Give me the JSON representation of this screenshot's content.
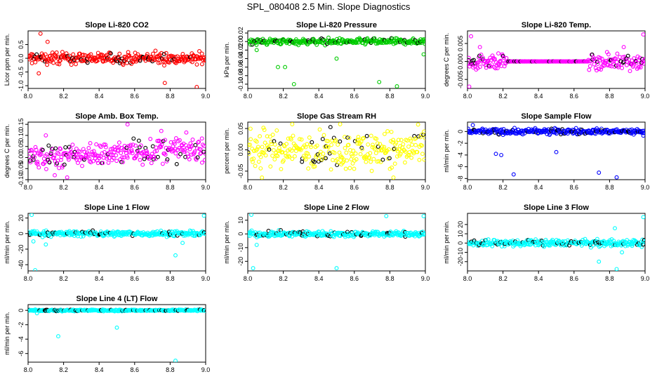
{
  "page_title": "SPL_080408  2.5 Min. Slope Diagnostics",
  "colors": {
    "highlight": "#000000"
  },
  "chart_data": [
    {
      "type": "scatter",
      "title": "Slope Li-820 CO2",
      "ylabel": "Licor ppm per min.",
      "color": "#ff0000",
      "xlim": [
        8.0,
        9.0
      ],
      "xticks": [
        8.0,
        8.2,
        8.4,
        8.6,
        8.8,
        9.0
      ],
      "xtick_labels": [
        "8.0",
        "8.2",
        "8.4",
        "8.6",
        "8.8",
        "9.0"
      ],
      "ylim": [
        -1.1,
        1.0
      ],
      "yticks": [
        -1.0,
        -0.5,
        0.0,
        0.5
      ],
      "ytick_labels": [
        "-1.0",
        "-0.5",
        "0.0",
        "0.5"
      ],
      "base": 0.0,
      "spread": 0.15,
      "outliers": [
        [
          8.07,
          0.9
        ],
        [
          8.11,
          0.6
        ],
        [
          8.77,
          -0.9
        ],
        [
          8.95,
          -1.05
        ],
        [
          8.06,
          -0.55
        ]
      ]
    },
    {
      "type": "scatter",
      "title": "Slope Li-820 Pressure",
      "ylabel": "kPa per min.",
      "color": "#00cc00",
      "xlim": [
        8.0,
        9.0
      ],
      "xticks": [
        8.0,
        8.2,
        8.4,
        8.6,
        8.8,
        9.0
      ],
      "xtick_labels": [
        "8.0",
        "8.2",
        "8.4",
        "8.6",
        "8.8",
        "9.0"
      ],
      "ylim": [
        -0.11,
        0.025
      ],
      "yticks": [
        -0.1,
        -0.08,
        -0.06,
        -0.04,
        -0.02,
        0.0,
        0.02
      ],
      "ytick_labels": [
        "-0.10",
        "-0.08",
        "-0.06",
        "-0.04",
        "-0.02",
        "0.00",
        "0.02"
      ],
      "base": 0.0,
      "spread": 0.005,
      "outliers": [
        [
          8.17,
          -0.06
        ],
        [
          8.21,
          -0.06
        ],
        [
          8.26,
          -0.1
        ],
        [
          8.5,
          -0.04
        ],
        [
          8.74,
          -0.095
        ],
        [
          8.84,
          -0.105
        ],
        [
          8.99,
          -0.03
        ],
        [
          8.05,
          -0.02
        ]
      ]
    },
    {
      "type": "scatter",
      "title": "Slope Li-820 Temp.",
      "ylabel": "degrees C per min.",
      "color": "#ff00ff",
      "xlim": [
        8.0,
        9.0
      ],
      "xticks": [
        8.0,
        8.2,
        8.4,
        8.6,
        8.8,
        9.0
      ],
      "xtick_labels": [
        "8.0",
        "8.2",
        "8.4",
        "8.6",
        "8.8",
        "9.0"
      ],
      "ylim": [
        -0.0075,
        0.0085
      ],
      "yticks": [
        -0.005,
        0.0,
        0.005
      ],
      "ytick_labels": [
        "-0.005",
        "0.000",
        "0.005"
      ],
      "base": 0.0,
      "spread": 0.0015,
      "flat_range": [
        8.22,
        8.68
      ],
      "outliers": [
        [
          8.02,
          0.007
        ],
        [
          8.01,
          -0.007
        ],
        [
          8.99,
          0.0075
        ],
        [
          8.07,
          0.004
        ],
        [
          8.88,
          0.004
        ]
      ]
    },
    {
      "type": "scatter",
      "title": "Slope Amb. Box Temp.",
      "ylabel": "degrees C per min.",
      "color": "#ff00ff",
      "xlim": [
        8.0,
        9.0
      ],
      "xticks": [
        8.0,
        8.2,
        8.4,
        8.6,
        8.8,
        9.0
      ],
      "xtick_labels": [
        "8.0",
        "8.2",
        "8.4",
        "8.6",
        "8.8",
        "9.0"
      ],
      "ylim": [
        -0.1,
        0.16
      ],
      "yticks": [
        -0.1,
        -0.05,
        0.0,
        0.05,
        0.1,
        0.15
      ],
      "ytick_labels": [
        "-0.10",
        "-0.05",
        "0.00",
        "0.05",
        "0.10",
        "0.15"
      ],
      "base": 0.0,
      "spread": 0.04,
      "trend": 0.04,
      "outliers": [
        [
          8.56,
          0.15
        ],
        [
          8.22,
          -0.09
        ],
        [
          8.1,
          0.1
        ],
        [
          8.75,
          0.12
        ],
        [
          8.15,
          -0.08
        ]
      ]
    },
    {
      "type": "scatter",
      "title": "Slope Gas Stream RH",
      "ylabel": "percent per min.",
      "color": "#ffff00",
      "xlim": [
        8.0,
        9.0
      ],
      "xticks": [
        8.0,
        8.2,
        8.4,
        8.6,
        8.8,
        9.0
      ],
      "xtick_labels": [
        "8.0",
        "8.2",
        "8.4",
        "8.6",
        "8.8",
        "9.0"
      ],
      "ylim": [
        -0.07,
        0.065
      ],
      "yticks": [
        -0.05,
        0.0,
        0.05
      ],
      "ytick_labels": [
        "-0.05",
        "0.00",
        "0.05"
      ],
      "base": 0.0,
      "spread": 0.03,
      "outliers": [
        [
          8.08,
          -0.065
        ],
        [
          8.82,
          -0.065
        ],
        [
          8.52,
          0.06
        ],
        [
          8.25,
          0.06
        ]
      ]
    },
    {
      "type": "scatter",
      "title": "Slope Sample Flow",
      "ylabel": "ml/min per min.",
      "color": "#0000ff",
      "xlim": [
        8.0,
        9.0
      ],
      "xticks": [
        8.0,
        8.2,
        8.4,
        8.6,
        8.8,
        9.0
      ],
      "xtick_labels": [
        "8.0",
        "8.2",
        "8.4",
        "8.6",
        "8.8",
        "9.0"
      ],
      "ylim": [
        -8.2,
        1.6
      ],
      "yticks": [
        -8,
        -6,
        -4,
        -2,
        0
      ],
      "ytick_labels": [
        "-8",
        "-6",
        "-4",
        "-2",
        "0"
      ],
      "base": 0.0,
      "spread": 0.35,
      "outliers": [
        [
          8.16,
          -3.8
        ],
        [
          8.19,
          -4.0
        ],
        [
          8.26,
          -7.3
        ],
        [
          8.5,
          -3.5
        ],
        [
          8.74,
          -7.0
        ],
        [
          8.84,
          -7.8
        ],
        [
          8.03,
          1.1
        ],
        [
          8.99,
          -0.7
        ]
      ]
    },
    {
      "type": "scatter",
      "title": "Slope Line 1 Flow",
      "ylabel": "ml/min per min.",
      "color": "#00ffff",
      "xlim": [
        8.0,
        9.0
      ],
      "xticks": [
        8.0,
        8.2,
        8.4,
        8.6,
        8.8,
        9.0
      ],
      "xtick_labels": [
        "8.0",
        "8.2",
        "8.4",
        "8.6",
        "8.8",
        "9.0"
      ],
      "ylim": [
        -48,
        26
      ],
      "yticks": [
        -40,
        -20,
        0,
        20
      ],
      "ytick_labels": [
        "-40",
        "-20",
        "0",
        "20"
      ],
      "base": 0.0,
      "spread": 2.5,
      "outliers": [
        [
          8.02,
          24
        ],
        [
          8.04,
          -47
        ],
        [
          8.03,
          -10
        ],
        [
          8.83,
          -28
        ],
        [
          8.99,
          23
        ],
        [
          8.1,
          -14
        ],
        [
          8.87,
          -12
        ]
      ]
    },
    {
      "type": "scatter",
      "title": "Slope Line 2 Flow",
      "ylabel": "ml/min per min.",
      "color": "#00ffff",
      "xlim": [
        8.0,
        9.0
      ],
      "xticks": [
        8.0,
        8.2,
        8.4,
        8.6,
        8.8,
        9.0
      ],
      "xtick_labels": [
        "8.0",
        "8.2",
        "8.4",
        "8.6",
        "8.8",
        "9.0"
      ],
      "ylim": [
        -27,
        15
      ],
      "yticks": [
        -20,
        -10,
        0,
        10
      ],
      "ytick_labels": [
        "-20",
        "-10",
        "0",
        "10"
      ],
      "base": 0.0,
      "spread": 1.5,
      "outliers": [
        [
          8.03,
          -25
        ],
        [
          8.02,
          14
        ],
        [
          8.5,
          -25
        ],
        [
          8.78,
          13
        ],
        [
          8.99,
          13
        ],
        [
          8.05,
          -8
        ]
      ]
    },
    {
      "type": "scatter",
      "title": "Slope Line 3 Flow",
      "ylabel": "ml/min per min.",
      "color": "#00ffff",
      "xlim": [
        8.0,
        9.0
      ],
      "xticks": [
        8.0,
        8.2,
        8.4,
        8.6,
        8.8,
        9.0
      ],
      "xtick_labels": [
        "8.0",
        "8.2",
        "8.4",
        "8.6",
        "8.8",
        "9.0"
      ],
      "ylim": [
        -30,
        32
      ],
      "yticks": [
        -20,
        -10,
        0,
        10,
        20
      ],
      "ytick_labels": [
        "-20",
        "-10",
        "0",
        "10",
        "20"
      ],
      "base": 0.0,
      "spread": 2.5,
      "outliers": [
        [
          8.84,
          -28
        ],
        [
          8.99,
          28
        ],
        [
          8.74,
          -20
        ],
        [
          8.83,
          16
        ],
        [
          8.87,
          -10
        ]
      ]
    },
    {
      "type": "scatter",
      "title": "Slope Line 4 (LT) Flow",
      "ylabel": "ml/min per min.",
      "color": "#00ffff",
      "xlim": [
        8.0,
        9.0
      ],
      "xticks": [
        8.0,
        8.2,
        8.4,
        8.6,
        8.8,
        9.0
      ],
      "xtick_labels": [
        "8.0",
        "8.2",
        "8.4",
        "8.6",
        "8.8",
        "9.0"
      ],
      "ylim": [
        -7.2,
        0.8
      ],
      "yticks": [
        -6,
        -4,
        -2,
        0
      ],
      "ytick_labels": [
        "-6",
        "-4",
        "-2",
        "0"
      ],
      "base": 0.0,
      "spread": 0.08,
      "outliers": [
        [
          8.17,
          -3.6
        ],
        [
          8.5,
          -2.4
        ],
        [
          8.83,
          -7.0
        ],
        [
          8.05,
          -0.4
        ]
      ]
    }
  ]
}
